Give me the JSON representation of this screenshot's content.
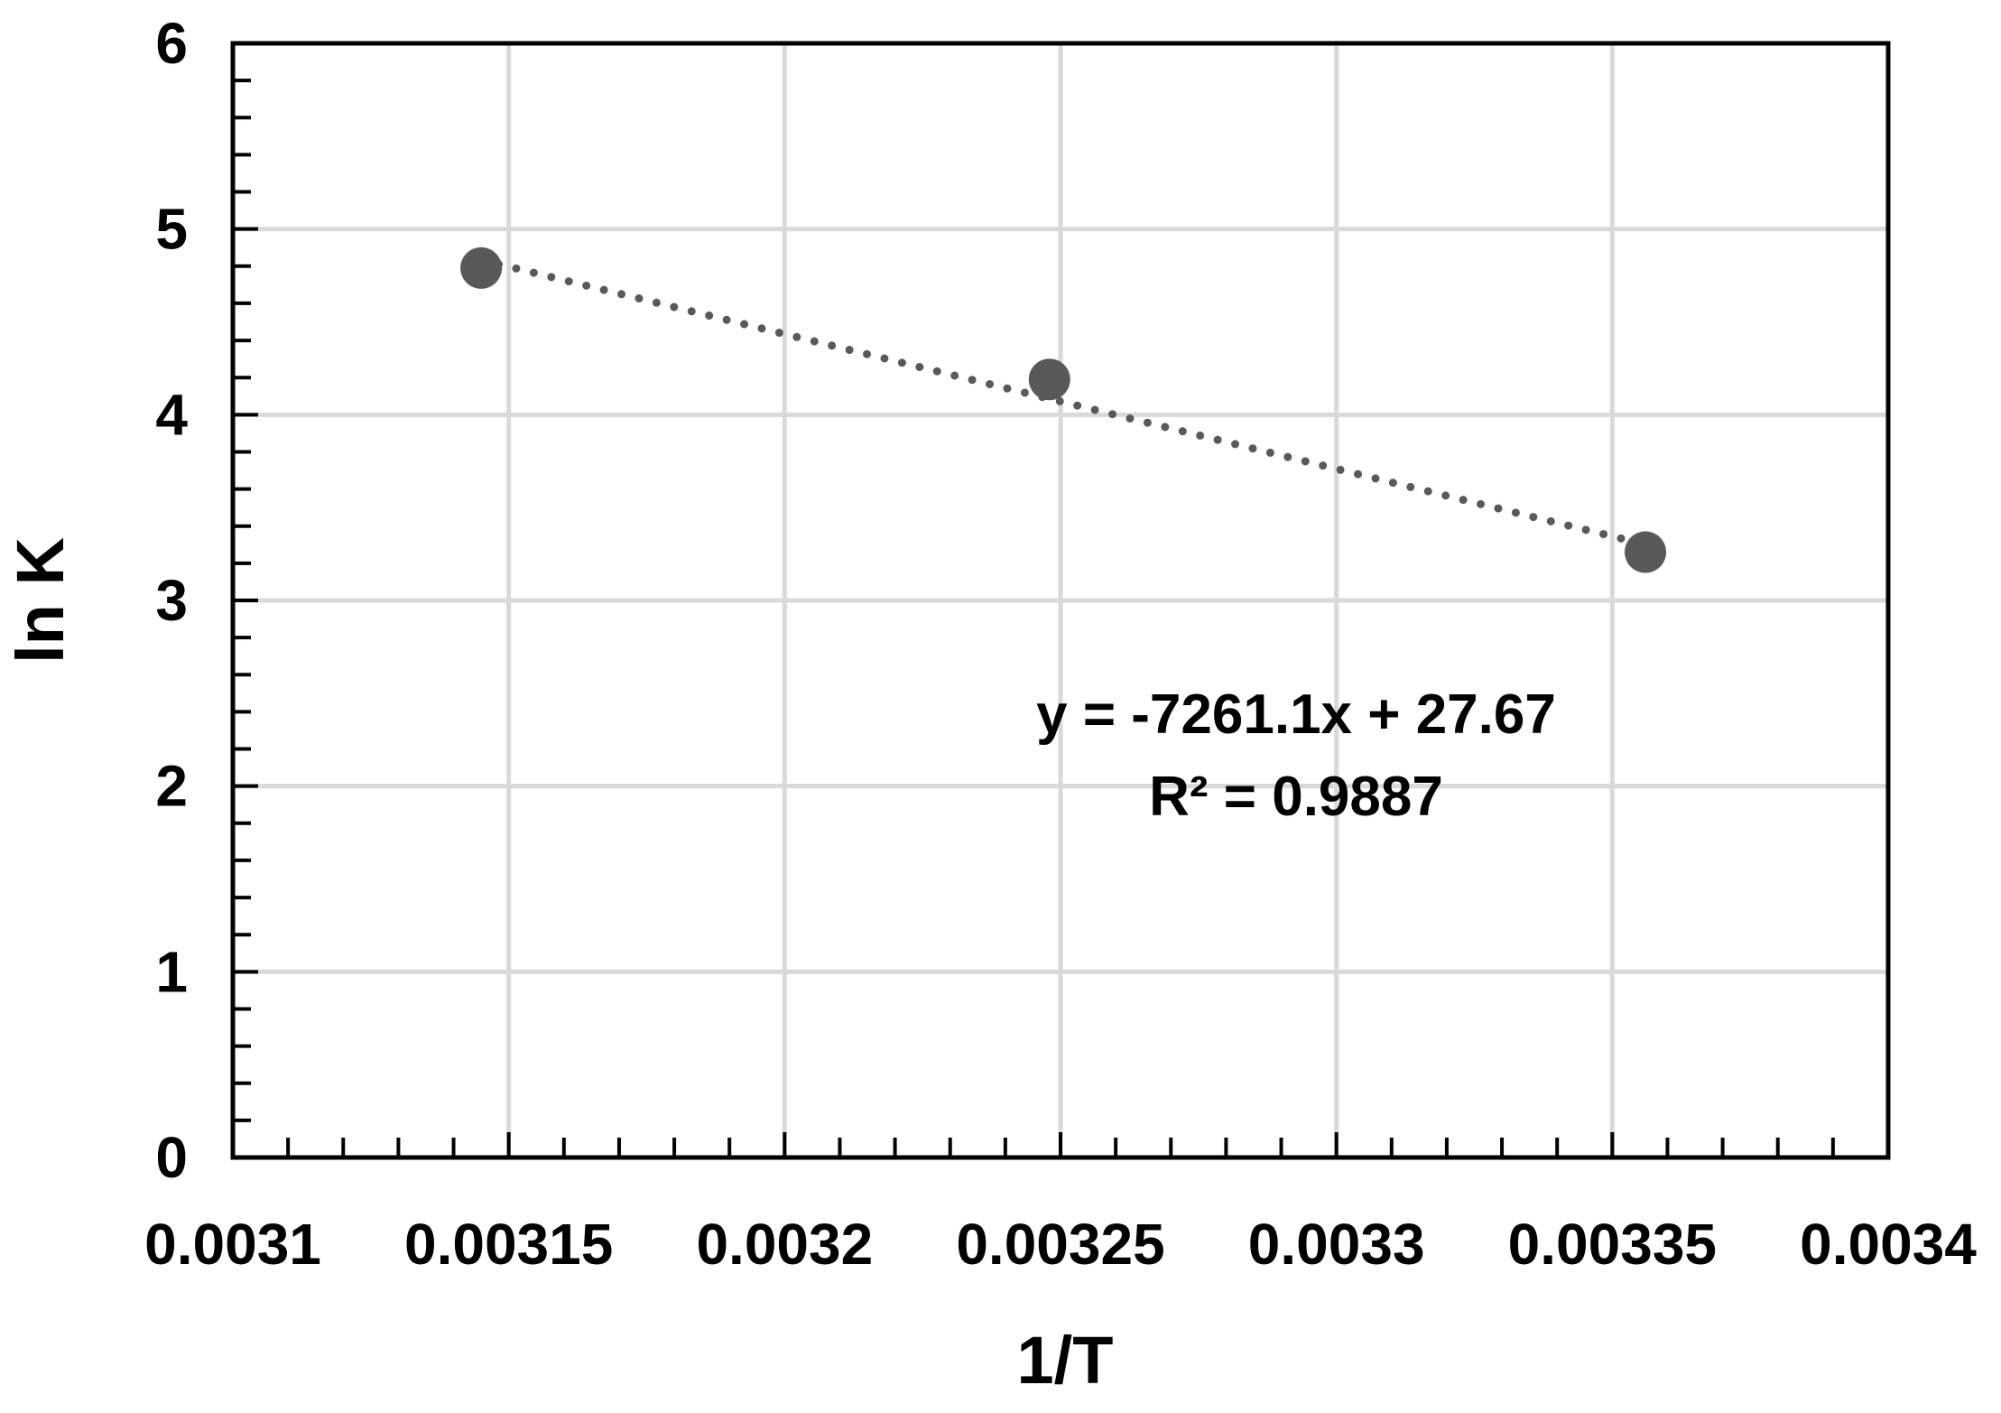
{
  "chart_data": {
    "type": "scatter",
    "title": "",
    "xlabel": "1/T",
    "ylabel": "ln K",
    "xlim": [
      0.0031,
      0.0034
    ],
    "ylim": [
      0,
      6
    ],
    "x_ticks": [
      0.0031,
      0.00315,
      0.0032,
      0.00325,
      0.0033,
      0.00335,
      0.0034
    ],
    "x_tick_labels": [
      "0.0031",
      "0.00315",
      "0.0032",
      "0.00325",
      "0.0033",
      "0.00335",
      "0.0034"
    ],
    "y_ticks": [
      0,
      1,
      2,
      3,
      4,
      5,
      6
    ],
    "y_tick_labels": [
      "0",
      "1",
      "2",
      "3",
      "4",
      "5",
      "6"
    ],
    "x_minor_step": 1e-05,
    "y_minor_step": 0.2,
    "grid": true,
    "legend": "none",
    "series": [
      {
        "x": [
          0.003145,
          0.003248,
          0.003356
        ],
        "y": [
          4.79,
          4.19,
          3.26
        ],
        "marker": "circle",
        "color": "#595959"
      }
    ],
    "trendline": {
      "style": "dotted",
      "color": "#595959",
      "slope": -7261.1,
      "intercept": 27.67,
      "x_range": [
        0.003145,
        0.003356
      ]
    },
    "annotations": {
      "equation": "y = -7261.1x + 27.67",
      "r_squared": "R² = 0.9887"
    },
    "colors": {
      "grid": "#d9d9d9",
      "axis": "#000000",
      "marker": "#595959"
    }
  }
}
